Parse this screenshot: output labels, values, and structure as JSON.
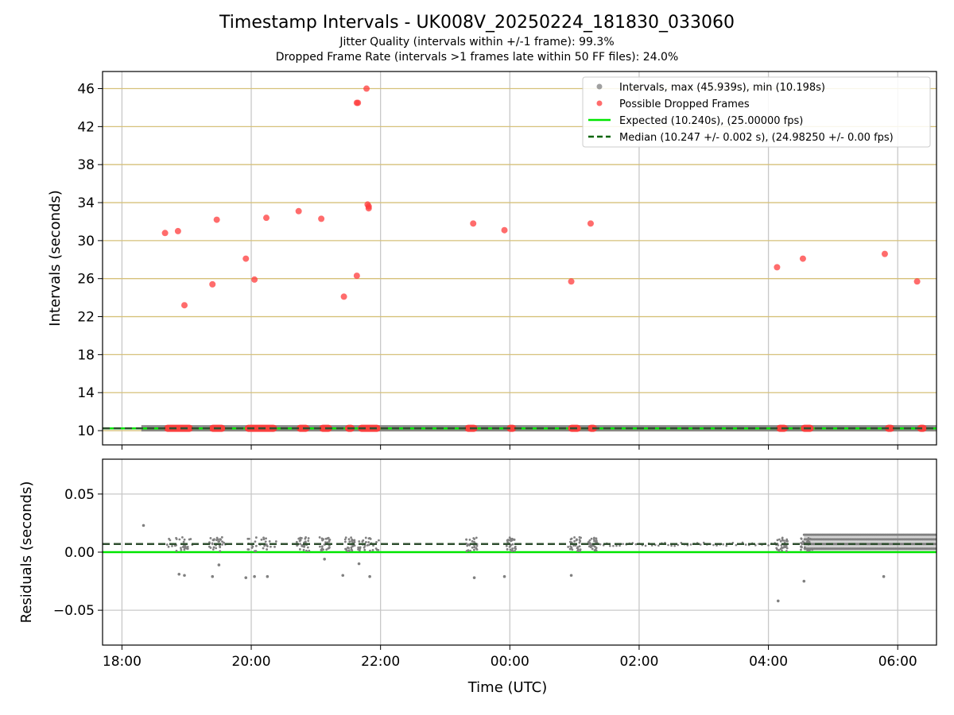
{
  "title": "Timestamp Intervals - UK008V_20250224_181830_033060",
  "subtitle_1": "Jitter Quality (intervals within +/-1 frame): 99.3%",
  "subtitle_2": "Dropped Frame Rate (intervals >1 frames late within 50 FF files): 24.0%",
  "colors": {
    "intervals": "#808080",
    "dropped": "#ff3b3b",
    "expected": "#00e600",
    "median": "#006400",
    "hgrid": "#d6c17a",
    "vgrid": "#c8c8c8"
  },
  "chart_data": [
    {
      "type": "scatter",
      "name": "intervals-panel",
      "ylabel": "Intervals (seconds)",
      "yticks": [
        10,
        14,
        18,
        22,
        26,
        30,
        34,
        38,
        42,
        46
      ],
      "ylim": [
        8.5,
        47.8
      ],
      "xlim_hours": [
        17.7,
        30.6
      ],
      "grid": true,
      "legend_position": "upper right",
      "legend": {
        "intervals": "Intervals, max (45.939s), min (10.198s)",
        "dropped": "Possible Dropped Frames",
        "expected": "Expected (10.240s), (25.00000 fps)",
        "median": "Median (10.247 +/- 0.002 s), (24.98250 +/- 0.00 fps)"
      },
      "expected_value": 10.24,
      "median_value": 10.247,
      "intervals_x_range_hours": [
        18.3,
        30.6
      ],
      "dropped_points": [
        {
          "x": "18:40",
          "y": 30.8
        },
        {
          "x": "18:52",
          "y": 31.0
        },
        {
          "x": "18:58",
          "y": 23.2
        },
        {
          "x": "19:24",
          "y": 25.4
        },
        {
          "x": "19:28",
          "y": 32.2
        },
        {
          "x": "19:55",
          "y": 28.1
        },
        {
          "x": "20:03",
          "y": 25.9
        },
        {
          "x": "20:14",
          "y": 32.4
        },
        {
          "x": "20:44",
          "y": 33.1
        },
        {
          "x": "21:05",
          "y": 32.3
        },
        {
          "x": "21:26",
          "y": 24.1
        },
        {
          "x": "21:38",
          "y": 44.5
        },
        {
          "x": "21:39",
          "y": 44.5
        },
        {
          "x": "21:38",
          "y": 26.3
        },
        {
          "x": "21:47",
          "y": 46.0
        },
        {
          "x": "21:48",
          "y": 33.8
        },
        {
          "x": "21:49",
          "y": 33.4
        },
        {
          "x": "21:49",
          "y": 33.6
        },
        {
          "x": "23:26",
          "y": 31.8
        },
        {
          "x": "23:55",
          "y": 31.1
        },
        {
          "x": "00:57",
          "y": 25.7
        },
        {
          "x": "01:15",
          "y": 31.8
        },
        {
          "x": "04:08",
          "y": 27.2
        },
        {
          "x": "04:32",
          "y": 28.1
        },
        {
          "x": "05:48",
          "y": 28.6
        },
        {
          "x": "06:18",
          "y": 25.7
        }
      ],
      "dropped_baseline_clusters_hours": [
        [
          18.65,
          19.1
        ],
        [
          19.35,
          19.6
        ],
        [
          19.9,
          20.4
        ],
        [
          20.7,
          20.9
        ],
        [
          21.05,
          21.25
        ],
        [
          21.45,
          21.6
        ],
        [
          21.65,
          22.0
        ],
        [
          23.3,
          23.5
        ],
        [
          23.95,
          24.1
        ],
        [
          24.9,
          25.1
        ],
        [
          25.2,
          25.35
        ],
        [
          28.12,
          28.3
        ],
        [
          28.5,
          28.7
        ],
        [
          29.8,
          29.95
        ],
        [
          30.3,
          30.45
        ]
      ]
    },
    {
      "type": "scatter",
      "name": "residuals-panel",
      "ylabel": "Residuals (seconds)",
      "xlabel": "Time (UTC)",
      "yticks": [
        0.05,
        0.0,
        -0.05
      ],
      "ytick_labels": [
        "0.05",
        "0.00",
        "−0.05"
      ],
      "ylim": [
        -0.08,
        0.08
      ],
      "xticks": [
        "18:00",
        "20:00",
        "22:00",
        "00:00",
        "02:00",
        "04:00",
        "06:00"
      ],
      "xlim_hours": [
        17.7,
        30.6
      ],
      "grid": true,
      "expected_value": 0.0,
      "median_value": 0.007,
      "outliers": [
        {
          "x": "18:20",
          "y": 0.023
        },
        {
          "x": "18:53",
          "y": -0.019
        },
        {
          "x": "18:58",
          "y": -0.02
        },
        {
          "x": "19:24",
          "y": -0.021
        },
        {
          "x": "19:30",
          "y": -0.011
        },
        {
          "x": "19:55",
          "y": -0.022
        },
        {
          "x": "20:03",
          "y": -0.021
        },
        {
          "x": "20:15",
          "y": -0.021
        },
        {
          "x": "21:08",
          "y": -0.006
        },
        {
          "x": "21:25",
          "y": -0.02
        },
        {
          "x": "21:40",
          "y": -0.01
        },
        {
          "x": "21:50",
          "y": -0.021
        },
        {
          "x": "23:27",
          "y": -0.022
        },
        {
          "x": "23:55",
          "y": -0.021
        },
        {
          "x": "00:57",
          "y": -0.02
        },
        {
          "x": "04:09",
          "y": -0.042
        },
        {
          "x": "04:33",
          "y": -0.025
        },
        {
          "x": "05:47",
          "y": -0.021
        }
      ]
    }
  ]
}
